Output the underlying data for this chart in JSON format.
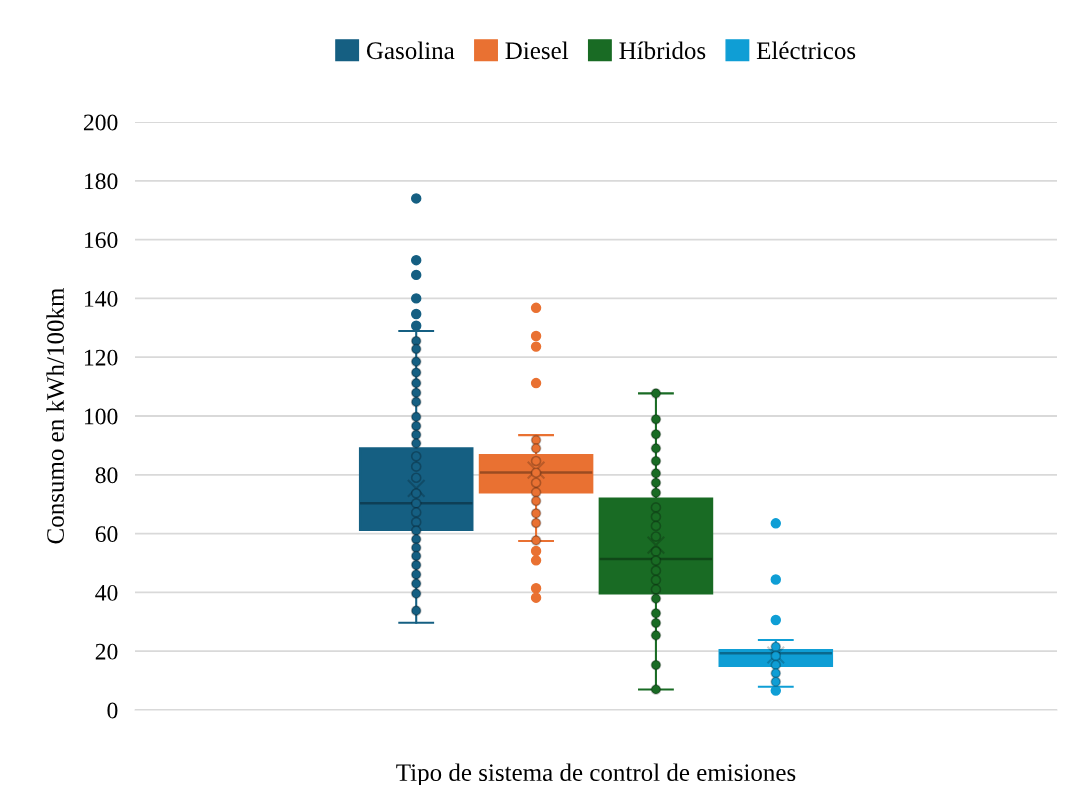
{
  "chart_data": {
    "type": "box",
    "xlabel": "Tipo de sistema de control de emisiones",
    "ylabel": "Consumo en kWh/100km",
    "categories": [
      null
    ],
    "ylim": [
      0,
      200
    ],
    "yticks": [
      0,
      20,
      40,
      60,
      80,
      100,
      120,
      140,
      160,
      180,
      200
    ],
    "grid": "y",
    "legend": "top",
    "series": [
      {
        "name": "Gasolina",
        "color": "#155f82",
        "boxes": [
          {
            "low": 29.7,
            "q1": 61.2,
            "median": 70.3,
            "q3": 89.0,
            "high": 128.9,
            "mean": 75.4,
            "outliers": [
              130.7,
              134.7,
              140,
              148,
              153,
              174
            ]
          }
        ]
      },
      {
        "name": "Diesel",
        "color": "#e97132",
        "boxes": [
          {
            "low": 57.5,
            "q1": 74.0,
            "median": 80.8,
            "q3": 86.7,
            "high": 93.5,
            "mean": 81.6,
            "outliers": [
              136.8,
              127.2,
              123.6,
              111.2,
              54.1,
              50.9,
              41.4,
              38.2
            ]
          }
        ]
      },
      {
        "name": "Híbridos",
        "color": "#196b24",
        "boxes": [
          {
            "low": 7.0,
            "q1": 39.6,
            "median": 51.4,
            "q3": 71.9,
            "high": 107.7,
            "mean": 56.1
          }
        ]
      },
      {
        "name": "Eléctricos",
        "color": "#0f9ed5",
        "boxes": [
          {
            "low": 7.9,
            "q1": 15.0,
            "median": 19.3,
            "q3": 20.4,
            "high": 23.8,
            "mean": 18.7,
            "outliers": [
              63.5,
              44.4,
              30.6,
              6.6
            ]
          }
        ]
      },
      {
        "type": "scatter",
        "color": "#155f82",
        "x": [
          null,
          null,
          null,
          null,
          null,
          null,
          null,
          null,
          null,
          null,
          null,
          null,
          null,
          null,
          null,
          null,
          null,
          null,
          null,
          null,
          null,
          null,
          null,
          null,
          null,
          null,
          null
        ],
        "values": [
          125.5,
          122.8,
          118.5,
          114.8,
          111.2,
          107.9,
          104.8,
          99.7,
          96.6,
          93.6,
          90.7,
          86.3,
          82.8,
          79.0,
          73.7,
          70.3,
          67.2,
          63.9,
          61.0,
          58.1,
          55.2,
          52.4,
          49.3,
          46.1,
          43.0,
          39.6,
          33.8
        ]
      },
      {
        "type": "scatter",
        "color": "#e97132",
        "x": [
          null,
          null,
          null,
          null,
          null,
          null,
          null,
          null,
          null,
          null
        ],
        "values": [
          91.8,
          89.0,
          84.7,
          80.7,
          77.3,
          74.0,
          71.1,
          66.9,
          63.6,
          57.7
        ]
      },
      {
        "type": "scatter",
        "color": "#196b24",
        "x": [
          null,
          null,
          null,
          null,
          null,
          null,
          null,
          null,
          null,
          null,
          null,
          null,
          null,
          null,
          null,
          null,
          null,
          null,
          null,
          null,
          null,
          null,
          null
        ],
        "values": [
          107.7,
          98.9,
          93.8,
          89.0,
          84.7,
          80.5,
          77.3,
          73.9,
          68.9,
          65.7,
          62.6,
          59.0,
          53.9,
          50.8,
          47.4,
          44.2,
          41.0,
          37.9,
          32.9,
          29.6,
          25.4,
          15.3,
          7.0
        ]
      },
      {
        "type": "scatter",
        "color": "#0f9ed5",
        "x": [
          null,
          null,
          null,
          null,
          null
        ],
        "values": [
          21.5,
          18.4,
          15.3,
          12.5,
          9.6
        ]
      }
    ]
  }
}
